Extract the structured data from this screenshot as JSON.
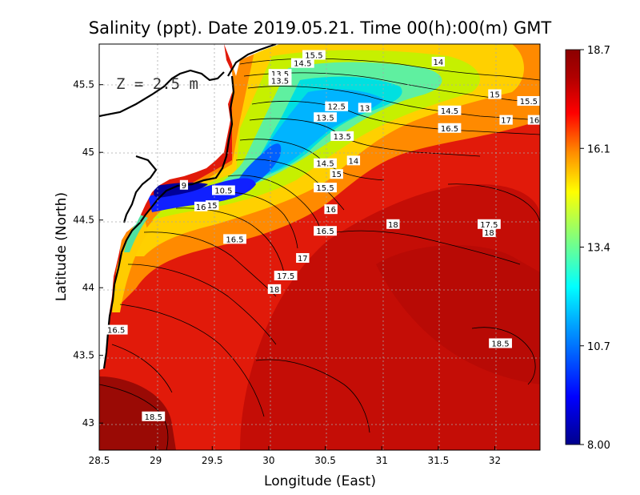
{
  "chart_data": {
    "type": "heatmap",
    "title": "Salinity (ppt). Date 2019.05.21. Time 00(h):00(m) GMT",
    "xlabel": "Longitude (East)",
    "ylabel": "Latitude (North)",
    "xlim": [
      28.5,
      32.4
    ],
    "ylim": [
      42.8,
      45.8
    ],
    "x_ticks": [
      "28.5",
      "29",
      "29.5",
      "30",
      "30.5",
      "31",
      "31.5",
      "32"
    ],
    "y_ticks": [
      "43",
      "43.5",
      "44",
      "44.5",
      "45",
      "45.5"
    ],
    "grid": true,
    "annotation": "Z = 2.5 m",
    "colorbar": {
      "min_label": "8.00",
      "max_label": "18.7",
      "tick_labels": [
        "8.00",
        "10.7",
        "13.4",
        "16.1",
        "18.7"
      ],
      "colors": [
        "#00008b",
        "#0000ff",
        "#00a0ff",
        "#00ffff",
        "#7fff7f",
        "#ffff00",
        "#ff8c00",
        "#ff0000",
        "#b00000",
        "#8b0000"
      ]
    },
    "contour_labels": [
      {
        "text": "15.5",
        "lon": 30.4,
        "lat": 45.72
      },
      {
        "text": "14.5",
        "lon": 30.3,
        "lat": 45.66
      },
      {
        "text": "14",
        "lon": 31.5,
        "lat": 45.67
      },
      {
        "text": "13.5",
        "lon": 30.1,
        "lat": 45.58
      },
      {
        "text": "13.5",
        "lon": 30.1,
        "lat": 45.53
      },
      {
        "text": "15",
        "lon": 32.0,
        "lat": 45.43
      },
      {
        "text": "15.5",
        "lon": 32.3,
        "lat": 45.38
      },
      {
        "text": "12.5",
        "lon": 30.6,
        "lat": 45.34
      },
      {
        "text": "13",
        "lon": 30.85,
        "lat": 45.33
      },
      {
        "text": "13.5",
        "lon": 30.5,
        "lat": 45.26
      },
      {
        "text": "14.5",
        "lon": 31.6,
        "lat": 45.31
      },
      {
        "text": "17",
        "lon": 32.1,
        "lat": 45.24
      },
      {
        "text": "16",
        "lon": 32.35,
        "lat": 45.24
      },
      {
        "text": "16.5",
        "lon": 31.6,
        "lat": 45.18
      },
      {
        "text": "13.5",
        "lon": 30.65,
        "lat": 45.12
      },
      {
        "text": "14",
        "lon": 30.75,
        "lat": 44.94
      },
      {
        "text": "14.5",
        "lon": 30.5,
        "lat": 44.92
      },
      {
        "text": "15",
        "lon": 30.6,
        "lat": 44.84
      },
      {
        "text": "9",
        "lon": 29.25,
        "lat": 44.76
      },
      {
        "text": "10.5",
        "lon": 29.6,
        "lat": 44.72
      },
      {
        "text": "15.5",
        "lon": 30.5,
        "lat": 44.74
      },
      {
        "text": "16",
        "lon": 29.4,
        "lat": 44.6
      },
      {
        "text": "15",
        "lon": 29.5,
        "lat": 44.61
      },
      {
        "text": "16",
        "lon": 30.55,
        "lat": 44.58
      },
      {
        "text": "18",
        "lon": 31.1,
        "lat": 44.47
      },
      {
        "text": "17.5",
        "lon": 31.95,
        "lat": 44.47
      },
      {
        "text": "18",
        "lon": 31.95,
        "lat": 44.41
      },
      {
        "text": "16.5",
        "lon": 30.5,
        "lat": 44.42
      },
      {
        "text": "16.5",
        "lon": 29.7,
        "lat": 44.36
      },
      {
        "text": "17",
        "lon": 30.3,
        "lat": 44.22
      },
      {
        "text": "17.5",
        "lon": 30.15,
        "lat": 44.09
      },
      {
        "text": "18",
        "lon": 30.05,
        "lat": 43.99
      },
      {
        "text": "16.5",
        "lon": 28.65,
        "lat": 43.69
      },
      {
        "text": "18.5",
        "lon": 32.05,
        "lat": 43.59
      },
      {
        "text": "18.5",
        "lon": 28.98,
        "lat": 43.05
      }
    ]
  }
}
